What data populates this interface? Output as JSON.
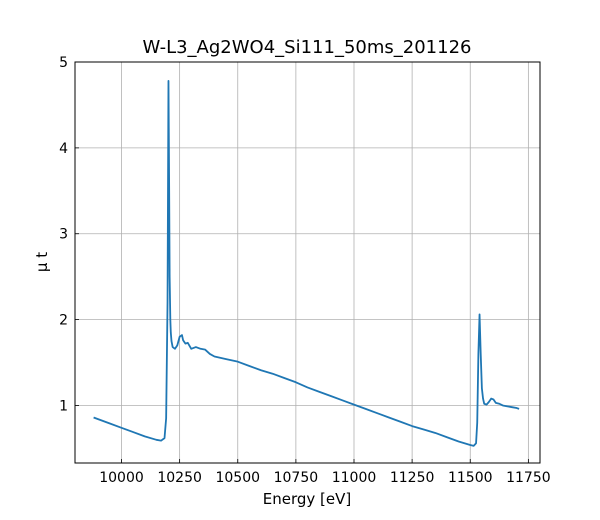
{
  "chart_data": {
    "type": "line",
    "title": "W-L3_Ag2WO4_Si111_50ms_201126",
    "xlabel": "Energy [eV]",
    "ylabel": "μ t",
    "xlim": [
      9800,
      11800
    ],
    "ylim": [
      0.33,
      5.0
    ],
    "xticks": [
      10000,
      10250,
      10500,
      10750,
      11000,
      11250,
      11500,
      11750
    ],
    "yticks": [
      1,
      2,
      3,
      4,
      5
    ],
    "grid": true,
    "series_color": "#1f77b4",
    "series": [
      {
        "x": [
          9880,
          9950,
          10000,
          10050,
          10100,
          10150,
          10170,
          10185,
          10192,
          10198,
          10202,
          10205,
          10207,
          10210,
          10212,
          10215,
          10220,
          10230,
          10240,
          10250,
          10260,
          10265,
          10275,
          10285,
          10300,
          10320,
          10340,
          10360,
          10380,
          10400,
          10450,
          10500,
          10550,
          10600,
          10650,
          10700,
          10750,
          10800,
          10850,
          10900,
          10950,
          11000,
          11050,
          11100,
          11150,
          11200,
          11250,
          11300,
          11350,
          11400,
          11450,
          11500,
          11515,
          11525,
          11530,
          11535,
          11540,
          11545,
          11550,
          11555,
          11560,
          11570,
          11580,
          11590,
          11600,
          11610,
          11625,
          11640,
          11660,
          11680,
          11700,
          11710
        ],
        "y": [
          0.86,
          0.79,
          0.74,
          0.69,
          0.64,
          0.6,
          0.59,
          0.62,
          0.85,
          2.2,
          4.78,
          3.5,
          2.5,
          2.0,
          1.85,
          1.75,
          1.68,
          1.66,
          1.7,
          1.8,
          1.82,
          1.76,
          1.72,
          1.73,
          1.66,
          1.68,
          1.66,
          1.65,
          1.6,
          1.57,
          1.54,
          1.51,
          1.46,
          1.41,
          1.37,
          1.32,
          1.27,
          1.21,
          1.16,
          1.11,
          1.06,
          1.01,
          0.96,
          0.91,
          0.86,
          0.81,
          0.76,
          0.72,
          0.68,
          0.63,
          0.58,
          0.54,
          0.53,
          0.56,
          0.8,
          1.6,
          2.06,
          1.6,
          1.2,
          1.08,
          1.02,
          1.01,
          1.04,
          1.08,
          1.07,
          1.03,
          1.02,
          1.0,
          0.99,
          0.98,
          0.97,
          0.96
        ]
      }
    ]
  }
}
